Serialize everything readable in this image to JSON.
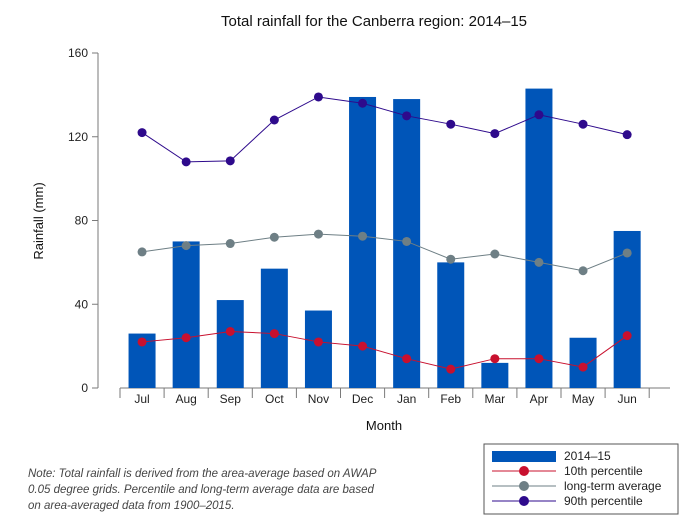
{
  "chart_data": {
    "type": "bar",
    "title": "Total rainfall for the Canberra region: 2014–15",
    "xlabel": "Month",
    "ylabel": "Rainfall (mm)",
    "ylim": [
      0,
      160
    ],
    "yticks": [
      0,
      40,
      80,
      120,
      160
    ],
    "categories": [
      "Jul",
      "Aug",
      "Sep",
      "Oct",
      "Nov",
      "Dec",
      "Jan",
      "Feb",
      "Mar",
      "Apr",
      "May",
      "Jun"
    ],
    "series": [
      {
        "name": "2014–15",
        "kind": "bar",
        "color": "#0055B8",
        "values": [
          26,
          70,
          42,
          57,
          37,
          139,
          138,
          60,
          12,
          143,
          24,
          75
        ]
      },
      {
        "name": "10th percentile",
        "kind": "line",
        "color": "#C8102E",
        "values": [
          22,
          24,
          27,
          26,
          22,
          20,
          14,
          9,
          14,
          14,
          10,
          25
        ]
      },
      {
        "name": "long-term average",
        "kind": "line",
        "color": "#6E7F85",
        "values": [
          65,
          68,
          69,
          72,
          73.5,
          72.5,
          70,
          61.5,
          64,
          60,
          56,
          64.5
        ]
      },
      {
        "name": "90th percentile",
        "kind": "line",
        "color": "#2E0A8C",
        "values": [
          122,
          108,
          108.5,
          128,
          139,
          136,
          130,
          126,
          121.5,
          130.5,
          126,
          121
        ]
      }
    ],
    "legend": "bottom-right",
    "grid": false
  },
  "note": "Note: Total rainfall is derived from the area-average based on AWAP 0.05 degree grids. Percentile and long-term average data are based on area-averaged data from 1900–2015."
}
